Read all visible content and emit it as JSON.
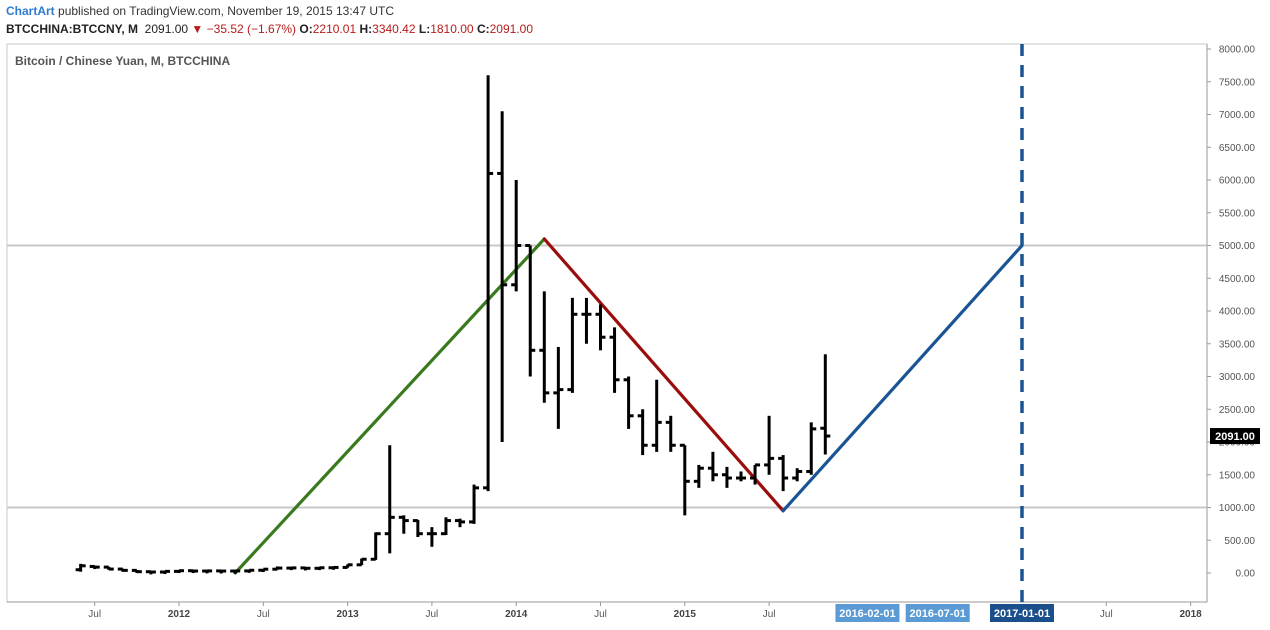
{
  "header": {
    "brand": "ChartArt",
    "published": "published on TradingView.com, November 19, 2015 13:47 UTC",
    "symbol": "BTCCHINA:BTCCNY, M",
    "price": "2091.00",
    "change": "−35.52 (−1.67%)",
    "o_label": "O:",
    "o_value": "2210.01",
    "h_label": "H:",
    "h_value": "3340.42",
    "l_label": "L:",
    "l_value": "1810.00",
    "c_label": "C:",
    "c_value": "2091.00"
  },
  "colors": {
    "bars": "#000000",
    "uptrend": "#3a7a1e",
    "downtrend": "#9b0d0d",
    "projection": "#1a5494",
    "hline": "#c8c8c8",
    "price_box": "#000000",
    "date_box_light": "#5b9bd5",
    "date_box_dark": "#1a4f8c"
  },
  "chart_data": {
    "type": "ohlc",
    "title": "Bitcoin / Chinese Yuan, M, BTCCHINA",
    "interval": "monthly",
    "y_range": [
      -400,
      8000
    ],
    "y_ticks": [
      0,
      500,
      1000,
      1500,
      2000,
      2500,
      3000,
      3500,
      4000,
      4500,
      5000,
      5500,
      6000,
      6500,
      7000,
      7500,
      8000
    ],
    "y_tick_labels": [
      "0.00",
      "500.00",
      "1000.00",
      "1500.00",
      "2000.00",
      "2500.00",
      "3000.00",
      "3500.00",
      "4000.00",
      "4500.00",
      "5000.00",
      "5500.00",
      "6000.00",
      "6500.00",
      "7000.00",
      "7500.00",
      "8000.00"
    ],
    "x_ticks": [
      {
        "label": "Jul",
        "date": "2011-07",
        "bold": false
      },
      {
        "label": "2012",
        "date": "2012-01",
        "bold": true
      },
      {
        "label": "Jul",
        "date": "2012-07",
        "bold": false
      },
      {
        "label": "2013",
        "date": "2013-01",
        "bold": true
      },
      {
        "label": "Jul",
        "date": "2013-07",
        "bold": false
      },
      {
        "label": "2014",
        "date": "2014-01",
        "bold": true
      },
      {
        "label": "Jul",
        "date": "2014-07",
        "bold": false
      },
      {
        "label": "2015",
        "date": "2015-01",
        "bold": true
      },
      {
        "label": "Jul",
        "date": "2015-07",
        "bold": false
      },
      {
        "label": "Jul",
        "date": "2017-07",
        "bold": false
      },
      {
        "label": "2018",
        "date": "2018-01",
        "bold": true
      }
    ],
    "date_labels": [
      {
        "label": "2016-02-01",
        "date": "2016-02",
        "style": "light"
      },
      {
        "label": "2016-07-01",
        "date": "2016-07",
        "style": "light"
      },
      {
        "label": "2017-01-01",
        "date": "2017-01",
        "style": "dark"
      }
    ],
    "horizontal_lines": [
      5000,
      1000
    ],
    "last_price_label": "2091.00",
    "last_price": 2091,
    "projection_vertical_date": "2017-01",
    "trend_lines": [
      {
        "role": "uptrend",
        "from": {
          "date": "2012-05",
          "price": 0
        },
        "to": {
          "date": "2014-03",
          "price": 5100
        }
      },
      {
        "role": "downtrend",
        "from": {
          "date": "2014-03",
          "price": 5100
        },
        "to": {
          "date": "2015-08",
          "price": 950
        }
      },
      {
        "role": "projection",
        "from": {
          "date": "2015-08",
          "price": 950
        },
        "to": {
          "date": "2017-01",
          "price": 5000
        }
      }
    ],
    "bars": [
      {
        "date": "2011-06",
        "o": 50,
        "h": 140,
        "l": 20,
        "c": 110
      },
      {
        "date": "2011-07",
        "o": 100,
        "h": 110,
        "l": 60,
        "c": 90
      },
      {
        "date": "2011-08",
        "o": 90,
        "h": 95,
        "l": 50,
        "c": 60
      },
      {
        "date": "2011-09",
        "o": 60,
        "h": 65,
        "l": 30,
        "c": 40
      },
      {
        "date": "2011-10",
        "o": 40,
        "h": 45,
        "l": 10,
        "c": 20
      },
      {
        "date": "2011-11",
        "o": 20,
        "h": 25,
        "l": 5,
        "c": 15
      },
      {
        "date": "2011-12",
        "o": 15,
        "h": 30,
        "l": 5,
        "c": 25
      },
      {
        "date": "2012-01",
        "o": 25,
        "h": 45,
        "l": 20,
        "c": 35
      },
      {
        "date": "2012-02",
        "o": 35,
        "h": 45,
        "l": 25,
        "c": 30
      },
      {
        "date": "2012-03",
        "o": 30,
        "h": 40,
        "l": 20,
        "c": 32
      },
      {
        "date": "2012-04",
        "o": 32,
        "h": 38,
        "l": 24,
        "c": 30
      },
      {
        "date": "2012-05",
        "o": 30,
        "h": 36,
        "l": 25,
        "c": 32
      },
      {
        "date": "2012-06",
        "o": 32,
        "h": 48,
        "l": 28,
        "c": 42
      },
      {
        "date": "2012-07",
        "o": 42,
        "h": 60,
        "l": 38,
        "c": 58
      },
      {
        "date": "2012-08",
        "o": 58,
        "h": 100,
        "l": 50,
        "c": 75
      },
      {
        "date": "2012-09",
        "o": 75,
        "h": 90,
        "l": 65,
        "c": 78
      },
      {
        "date": "2012-10",
        "o": 78,
        "h": 85,
        "l": 65,
        "c": 72
      },
      {
        "date": "2012-11",
        "o": 72,
        "h": 90,
        "l": 65,
        "c": 80
      },
      {
        "date": "2012-12",
        "o": 80,
        "h": 95,
        "l": 75,
        "c": 85
      },
      {
        "date": "2013-01",
        "o": 85,
        "h": 130,
        "l": 80,
        "c": 125
      },
      {
        "date": "2013-02",
        "o": 125,
        "h": 220,
        "l": 120,
        "c": 210
      },
      {
        "date": "2013-03",
        "o": 210,
        "h": 620,
        "l": 200,
        "c": 600
      },
      {
        "date": "2013-04",
        "o": 600,
        "h": 1950,
        "l": 300,
        "c": 850
      },
      {
        "date": "2013-05",
        "o": 850,
        "h": 880,
        "l": 600,
        "c": 800
      },
      {
        "date": "2013-06",
        "o": 800,
        "h": 810,
        "l": 550,
        "c": 600
      },
      {
        "date": "2013-07",
        "o": 600,
        "h": 700,
        "l": 400,
        "c": 600
      },
      {
        "date": "2013-08",
        "o": 600,
        "h": 850,
        "l": 580,
        "c": 800
      },
      {
        "date": "2013-09",
        "o": 800,
        "h": 830,
        "l": 700,
        "c": 780
      },
      {
        "date": "2013-10",
        "o": 780,
        "h": 1350,
        "l": 750,
        "c": 1300
      },
      {
        "date": "2013-11",
        "o": 1300,
        "h": 7600,
        "l": 1250,
        "c": 6100
      },
      {
        "date": "2013-12",
        "o": 6100,
        "h": 7050,
        "l": 2000,
        "c": 4400
      },
      {
        "date": "2014-01",
        "o": 4400,
        "h": 6000,
        "l": 4300,
        "c": 5000
      },
      {
        "date": "2014-02",
        "o": 5000,
        "h": 5000,
        "l": 3000,
        "c": 3400
      },
      {
        "date": "2014-03",
        "o": 3400,
        "h": 4300,
        "l": 2600,
        "c": 2750
      },
      {
        "date": "2014-04",
        "o": 2750,
        "h": 3450,
        "l": 2200,
        "c": 2800
      },
      {
        "date": "2014-05",
        "o": 2800,
        "h": 4200,
        "l": 2750,
        "c": 3950
      },
      {
        "date": "2014-06",
        "o": 3950,
        "h": 4200,
        "l": 3500,
        "c": 3950
      },
      {
        "date": "2014-07",
        "o": 3950,
        "h": 4100,
        "l": 3400,
        "c": 3600
      },
      {
        "date": "2014-08",
        "o": 3600,
        "h": 3750,
        "l": 2750,
        "c": 2950
      },
      {
        "date": "2014-09",
        "o": 2950,
        "h": 3000,
        "l": 2200,
        "c": 2400
      },
      {
        "date": "2014-10",
        "o": 2400,
        "h": 2500,
        "l": 1800,
        "c": 1950
      },
      {
        "date": "2014-11",
        "o": 1950,
        "h": 2950,
        "l": 1850,
        "c": 2300
      },
      {
        "date": "2014-12",
        "o": 2300,
        "h": 2400,
        "l": 1850,
        "c": 1950
      },
      {
        "date": "2015-01",
        "o": 1950,
        "h": 1950,
        "l": 880,
        "c": 1400
      },
      {
        "date": "2015-02",
        "o": 1400,
        "h": 1650,
        "l": 1300,
        "c": 1600
      },
      {
        "date": "2015-03",
        "o": 1600,
        "h": 1850,
        "l": 1400,
        "c": 1500
      },
      {
        "date": "2015-04",
        "o": 1500,
        "h": 1620,
        "l": 1300,
        "c": 1450
      },
      {
        "date": "2015-05",
        "o": 1450,
        "h": 1550,
        "l": 1400,
        "c": 1450
      },
      {
        "date": "2015-06",
        "o": 1450,
        "h": 1650,
        "l": 1350,
        "c": 1650
      },
      {
        "date": "2015-07",
        "o": 1650,
        "h": 2400,
        "l": 1500,
        "c": 1750
      },
      {
        "date": "2015-08",
        "o": 1750,
        "h": 1800,
        "l": 1250,
        "c": 1450
      },
      {
        "date": "2015-09",
        "o": 1450,
        "h": 1600,
        "l": 1400,
        "c": 1550
      },
      {
        "date": "2015-10",
        "o": 1550,
        "h": 2300,
        "l": 1500,
        "c": 2200
      },
      {
        "date": "2015-11",
        "o": 2210,
        "h": 3340,
        "l": 1810,
        "c": 2091
      }
    ]
  }
}
